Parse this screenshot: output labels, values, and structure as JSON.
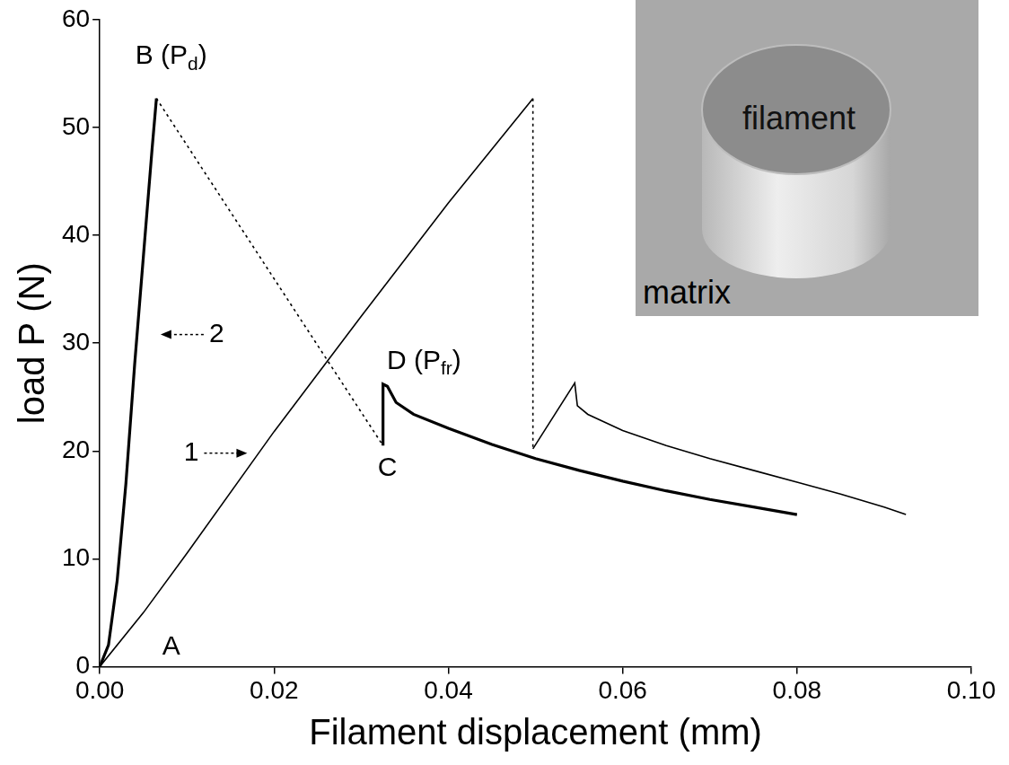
{
  "chart_data": {
    "type": "line",
    "x_label": "Filament displacement (mm)",
    "y_label": "load P (N)",
    "xlim": [
      0,
      0.1
    ],
    "ylim": [
      0,
      60
    ],
    "xticks": [
      {
        "value": 0,
        "label": "0.00"
      },
      {
        "value": 0.02,
        "label": "0.02"
      },
      {
        "value": 0.04,
        "label": "0.04"
      },
      {
        "value": 0.06,
        "label": "0.06"
      },
      {
        "value": 0.08,
        "label": "0.08"
      },
      {
        "value": 0.1,
        "label": "0.10"
      }
    ],
    "yticks": [
      0,
      10,
      20,
      30,
      40,
      50,
      60
    ],
    "grid": false,
    "series": [
      {
        "color": "#000000",
        "line_style": "solid",
        "x": [
          0,
          0.001,
          0.002,
          0.003,
          0.004,
          0.005,
          0.006,
          0.0065
        ],
        "values": [
          0,
          2,
          8,
          17,
          28,
          38,
          48,
          52.7
        ]
      },
      {
        "color": "#000000",
        "line_style": "dotted",
        "x": [
          0.0065,
          0.0325
        ],
        "values": [
          52.7,
          20.5
        ]
      },
      {
        "color": "#000000",
        "line_style": "solid",
        "x": [
          0.0325,
          0.0325,
          0.033,
          0.034,
          0.036,
          0.04,
          0.045,
          0.05,
          0.055,
          0.06,
          0.065,
          0.07,
          0.075,
          0.08
        ],
        "values": [
          20.5,
          26.2,
          26,
          24.5,
          23.4,
          22.1,
          20.6,
          19.3,
          18.2,
          17.2,
          16.3,
          15.5,
          14.8,
          14.1
        ]
      },
      {
        "color": "#000000",
        "line_style": "solid",
        "x": [
          0,
          0.005,
          0.01,
          0.02,
          0.03,
          0.04,
          0.0497
        ],
        "values": [
          0,
          5,
          10.5,
          21.8,
          32.5,
          43,
          52.7
        ]
      },
      {
        "color": "#000000",
        "line_style": "dotted",
        "x": [
          0.0497,
          0.0497
        ],
        "values": [
          52.7,
          20.2
        ]
      },
      {
        "color": "#000000",
        "line_style": "solid",
        "x": [
          0.0497,
          0.0545,
          0.0548,
          0.056,
          0.06,
          0.065,
          0.07,
          0.075,
          0.08,
          0.085,
          0.09,
          0.0925
        ],
        "values": [
          20.2,
          26.3,
          24.2,
          23.4,
          21.9,
          20.5,
          19.3,
          18.2,
          17.1,
          16,
          14.8,
          14.1
        ]
      }
    ],
    "annotations": [
      {
        "text": "A",
        "x": 0.0082,
        "y": 1.8
      },
      {
        "text": "B (Pd)",
        "sub": "d",
        "x": 0.0082,
        "y": 56.6
      },
      {
        "text": "C",
        "x": 0.033,
        "y": 18.4
      },
      {
        "text": "D (Pfr)",
        "sub": "fr",
        "x": 0.0372,
        "y": 28.3
      },
      {
        "text": "1",
        "x": 0.0105,
        "y": 19.8,
        "arrow": "right"
      },
      {
        "text": "2",
        "x": 0.0134,
        "y": 30.8,
        "arrow": "left"
      }
    ],
    "inset": {
      "labels": [
        "filament",
        "matrix"
      ]
    }
  }
}
